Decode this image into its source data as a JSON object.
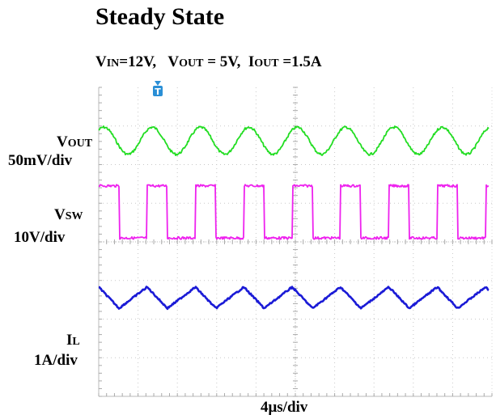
{
  "chart_data": {
    "type": "line",
    "title": "Steady State",
    "conditions": {
      "vin": {
        "sym": "V",
        "sub": "IN",
        "value": "=12V,"
      },
      "vout": {
        "sym": "V",
        "sub": "OUT",
        "value": " = 5V,"
      },
      "iout": {
        "sym": "I",
        "sub": "OUT",
        "value": " =1.5A"
      }
    },
    "xlabel": "4μs/div",
    "trigger_marker": "T",
    "grid": {
      "divisions_x": 10,
      "divisions_y": 8,
      "style": "dotted"
    },
    "series": [
      {
        "name": "VOUT",
        "label_sym": "V",
        "label_sub": "OUT",
        "scale": "50mV/div",
        "color": "#22dd22",
        "shape": "sine",
        "period_div": 1.23,
        "peak_to_peak_div": 0.7
      },
      {
        "name": "VSW",
        "label_sym": "V",
        "label_sub": "SW",
        "scale": "10V/div",
        "color": "#ee22ee",
        "shape": "square",
        "period_div": 1.23,
        "duty": 0.42,
        "amplitude_div": 1.35
      },
      {
        "name": "IL",
        "label_sym": "I",
        "label_sub": "L",
        "scale": "1A/div",
        "color": "#1a1ad6",
        "shape": "triangle",
        "period_div": 1.23,
        "duty": 0.42,
        "peak_to_peak_div": 0.55
      }
    ]
  }
}
